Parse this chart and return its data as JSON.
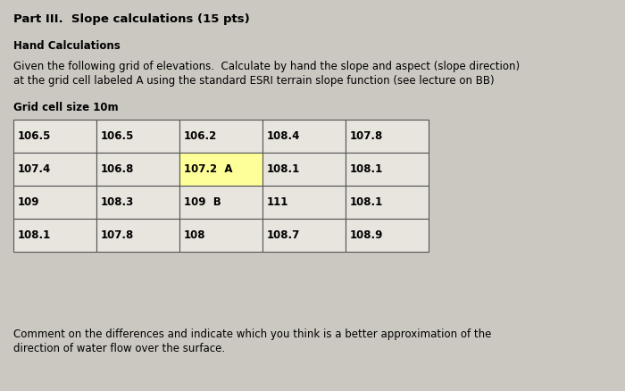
{
  "title": "Part III.  Slope calculations (15 pts)",
  "subtitle": "Hand Calculations",
  "body_text1": "Given the following grid of elevations.  Calculate by hand the slope and aspect (slope direction)",
  "body_text2": "at the grid cell labeled A using the standard ESRI terrain slope function (see lecture on BB)",
  "grid_label": "Grid cell size 10m",
  "grid": [
    [
      "106.5",
      "106.5",
      "106.2",
      "108.4",
      "107.8"
    ],
    [
      "107.4",
      "106.8",
      "107.2  A",
      "108.1",
      "108.1"
    ],
    [
      "109",
      "108.3",
      "109  B",
      "111",
      "108.1"
    ],
    [
      "108.1",
      "107.8",
      "108",
      "108.7",
      "108.9"
    ]
  ],
  "highlight_cell": [
    1,
    2
  ],
  "highlight_color": "#FFFF99",
  "bg_color": "#CBC7C1",
  "cell_bg_color": "#E8E4DE",
  "border_color": "#555555",
  "comment_text1": "Comment on the differences and indicate which you think is a better approximation of the",
  "comment_text2": "direction of water flow over the surface.",
  "title_fontsize": 9.5,
  "body_fontsize": 8.5,
  "grid_fontsize": 8.5,
  "small_fontsize": 8.0
}
